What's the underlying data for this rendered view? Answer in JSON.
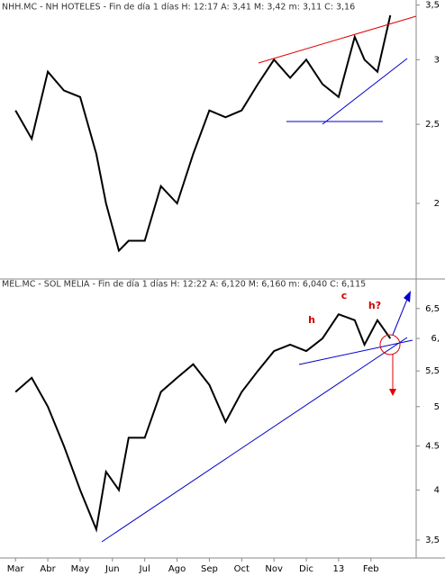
{
  "chart_data": [
    {
      "type": "line",
      "title": "NHH.MC - NH HOTELES - Fin de día 1 días H: 12:17  A: 3,41  M: 3,42  m: 3,11  C: 3,16",
      "log_scale": true,
      "color": "#000000",
      "x": [
        0,
        0.5,
        1,
        1.5,
        2,
        2.5,
        2.8,
        3.2,
        3.5,
        4,
        4.5,
        5,
        5.5,
        6,
        6.5,
        7,
        7.5,
        8,
        8.5,
        9,
        9.5,
        10,
        10.5,
        10.8,
        11.2,
        11.6
      ],
      "series": [
        {
          "name": "NH HOTELES",
          "color": "#000000",
          "values": [
            2.6,
            2.4,
            2.9,
            2.75,
            2.7,
            2.3,
            2.0,
            1.75,
            1.8,
            1.8,
            2.1,
            2.0,
            2.3,
            2.6,
            2.55,
            2.6,
            2.8,
            3.0,
            2.85,
            3.0,
            2.8,
            2.7,
            3.2,
            3.0,
            2.9,
            3.4
          ]
        }
      ],
      "xlim": [
        -0.48,
        12.4
      ],
      "ylim": [
        1.62,
        3.55
      ],
      "yticks": [
        {
          "value": 2,
          "label": "2"
        },
        {
          "value": 2.5,
          "label": "2,5"
        },
        {
          "value": 3,
          "label": "3"
        },
        {
          "value": 3.5,
          "label": "3,5"
        }
      ]
    },
    {
      "type": "line",
      "title": "MEL.MC - SOL MELIA - Fin de día 1 días H: 12:22  A: 6,120  M: 6,160  m: 6,040  C: 6,115",
      "log_scale": true,
      "color": "#000000",
      "x": [
        0,
        0.5,
        1,
        1.5,
        2,
        2.5,
        2.8,
        3.2,
        3.5,
        4,
        4.5,
        5,
        5.5,
        6,
        6.5,
        7,
        7.5,
        8,
        8.5,
        9,
        9.5,
        10,
        10.5,
        10.8,
        11.2,
        11.6
      ],
      "series": [
        {
          "name": "SOL MELIA",
          "color": "#000000",
          "values": [
            5.2,
            5.4,
            5.0,
            4.5,
            4.0,
            3.6,
            4.2,
            4.0,
            4.6,
            4.6,
            5.2,
            5.4,
            5.6,
            5.3,
            4.8,
            5.2,
            5.5,
            5.8,
            5.9,
            5.8,
            6.0,
            6.4,
            6.3,
            5.9,
            6.3,
            6.0
          ]
        }
      ],
      "xlim": [
        -0.48,
        12.4
      ],
      "ylim": [
        3.4,
        6.9
      ],
      "yticks": [
        {
          "value": 3.5,
          "label": "3,5"
        },
        4,
        4.5,
        {
          "value": 5,
          "label": "5"
        },
        {
          "value": 5.5,
          "label": "5,5"
        },
        {
          "value": 6,
          "label": "6,"
        },
        {
          "value": 6.5,
          "label": "6,5"
        }
      ],
      "xticks": [
        {
          "value": 0,
          "label": "Mar"
        },
        {
          "value": 1,
          "label": "Abr"
        },
        {
          "value": 2,
          "label": "May"
        },
        {
          "value": 3,
          "label": "Jun"
        },
        {
          "value": 4,
          "label": "Jul"
        },
        {
          "value": 5,
          "label": "Ago"
        },
        {
          "value": 6,
          "label": "Sep"
        },
        {
          "value": 7,
          "label": "Oct"
        },
        {
          "value": 8,
          "label": "Nov"
        },
        {
          "value": 9,
          "label": "Dic"
        },
        {
          "value": 10,
          "label": "13"
        },
        {
          "value": 11,
          "label": "Feb"
        }
      ],
      "annotations": [
        "h",
        "c",
        "h?"
      ]
    }
  ]
}
